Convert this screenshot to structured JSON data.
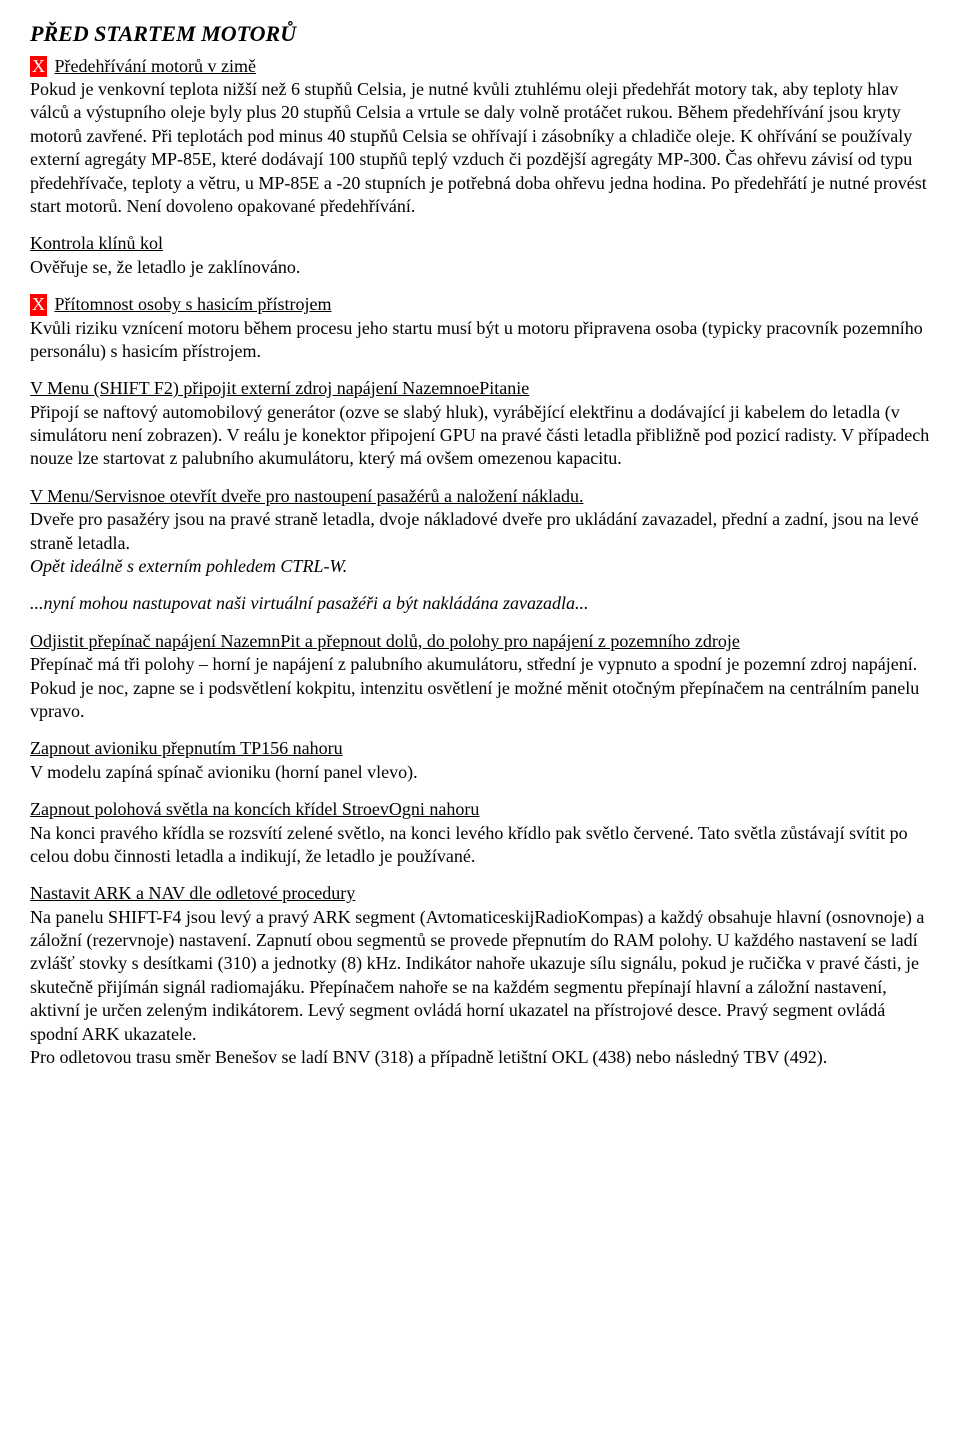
{
  "title": "PŘED STARTEM MOTORŮ",
  "s1": {
    "x": "X",
    "heading": "Předehřívání motorů v zimě",
    "body": "Pokud je venkovní teplota nižší než 6 stupňů Celsia, je nutné kvůli ztuhlému oleji předehřát motory tak, aby teploty hlav válců a výstupního oleje byly plus 20 stupňů Celsia a vrtule se daly volně protáčet rukou. Během předehřívání jsou kryty motorů zavřené. Při teplotách pod minus 40 stupňů Celsia se ohřívají i zásobníky a chladiče oleje. K ohřívání se používaly externí agregáty MP-85E, které dodávají 100 stupňů teplý vzduch či pozdější agregáty MP-300. Čas ohřevu závisí od typu předehřívače, teploty  a větru, u MP-85E a -20 stupních je potřebná doba ohřevu jedna hodina. Po předehřátí je nutné provést start motorů. Není dovoleno opakované předehřívání."
  },
  "s2": {
    "heading": "Kontrola klínů kol",
    "body": "Ověřuje se, že letadlo je zaklínováno."
  },
  "s3": {
    "x": "X",
    "heading": "Přítomnost osoby s hasicím přístrojem",
    "body": "Kvůli riziku vznícení motoru během procesu jeho startu musí být u motoru připravena osoba (typicky pracovník pozemního personálu) s hasicím přístrojem."
  },
  "s4": {
    "heading": "V Menu (SHIFT F2) připojit externí zdroj napájení NazemnoePitanie",
    "body": "Připojí se naftový automobilový generátor (ozve se slabý hluk), vyrábějící elektřinu a dodávající ji kabelem do letadla (v simulátoru není zobrazen). V reálu je konektor připojení GPU na pravé části letadla přibližně pod pozicí radisty.  V případech nouze lze startovat z palubního akumulátoru, který má ovšem omezenou kapacitu."
  },
  "s5": {
    "heading": "V Menu/Servisnoe otevřít dveře pro nastoupení pasažérů a naložení nákladu.",
    "body": "Dveře pro pasažéry jsou na pravé straně letadla, dvoje nákladové dveře pro ukládání zavazadel, přední a zadní, jsou na levé straně letadla.",
    "italic": "Opět ideálně s externím pohledem CTRL-W."
  },
  "s5b": {
    "italic": "...nyní mohou nastupovat naši virtuální pasažéři a být nakládána zavazadla..."
  },
  "s6": {
    "heading": "Odjistit přepínač napájení NazemnPit a přepnout dolů, do polohy pro napájení z pozemního zdroje",
    "body": "Přepínač má tři polohy – horní je napájení z palubního akumulátoru, střední je vypnuto a spodní je pozemní zdroj napájení. Pokud je noc, zapne se i podsvětlení kokpitu, intenzitu osvětlení je možné měnit otočným přepínačem na centrálním panelu vpravo."
  },
  "s7": {
    "heading": "Zapnout avioniku přepnutím TP156 nahoru",
    "body": "V modelu zapíná spínač avioniku (horní panel vlevo)."
  },
  "s8": {
    "heading": "Zapnout polohová světla na koncích křídel StroevOgni nahoru",
    "body": "Na konci pravého křídla se rozsvítí zelené světlo, na konci levého křídlo pak světlo červené. Tato světla zůstávají svítit po celou dobu činnosti letadla a indikují, že letadlo je používané."
  },
  "s9": {
    "heading": "Nastavit ARK a NAV dle odletové procedury",
    "body": "Na panelu SHIFT-F4 jsou levý a pravý ARK segment (AvtomaticeskijRadioKompas) a každý obsahuje hlavní (osnovnoje) a záložní (rezervnoje) nastavení. Zapnutí obou segmentů se provede přepnutím do RAM polohy. U každého nastavení se ladí zvlášť stovky s desítkami (310) a jednotky (8) kHz. Indikátor nahoře ukazuje sílu signálu, pokud je ručička v pravé části, je skutečně přijímán signál radiomajáku. Přepínačem nahoře  se na každém segmentu přepínají hlavní a záložní nastavení, aktivní je určen zeleným indikátorem. Levý segment ovládá horní ukazatel na přístrojové desce. Pravý segment ovládá spodní ARK ukazatele.",
    "body2": "Pro odletovou trasu směr Benešov se ladí BNV (318) a případně letištní OKL (438) nebo následný TBV (492)."
  }
}
